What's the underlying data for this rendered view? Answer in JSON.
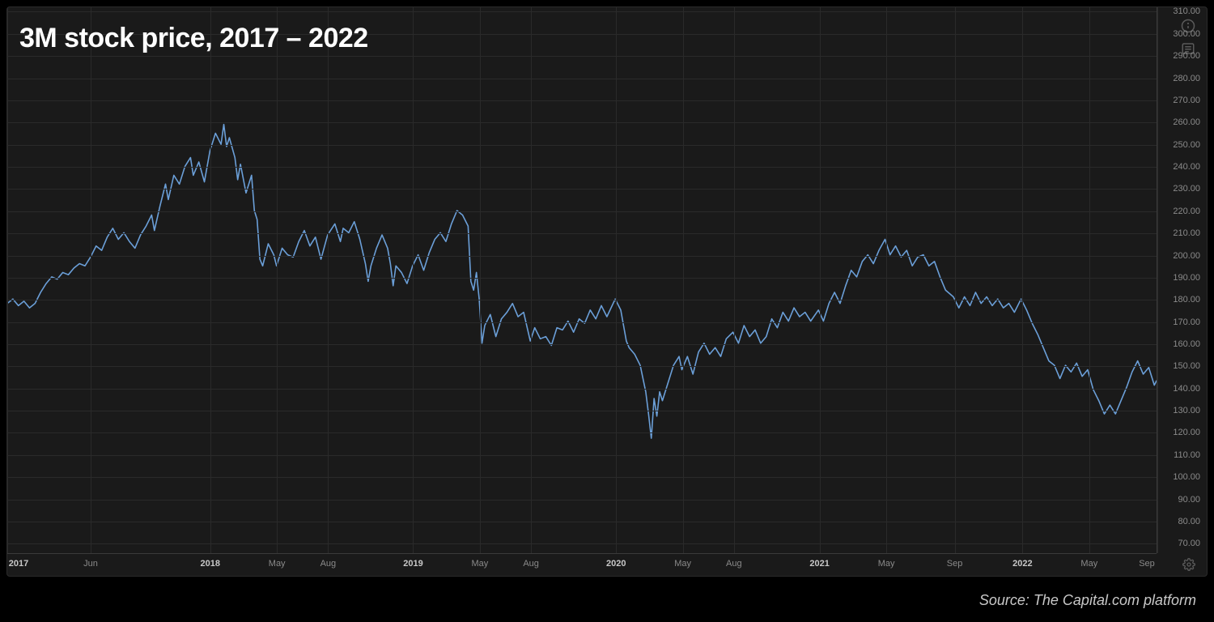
{
  "title": "3M stock price, 2017 – 2022",
  "source": "Source: The Capital.com platform",
  "chart": {
    "type": "line",
    "background_color": "#1a1a1a",
    "grid_color": "#2a2a2a",
    "axis_border_color": "#3a3a3a",
    "axis_label_color": "#8a8a8a",
    "axis_label_bold_color": "#c8c8c8",
    "axis_fontsize": 11,
    "title_color": "#ffffff",
    "title_fontsize": 34,
    "line_color": "#6b9fd8",
    "line_width": 1.6,
    "y_axis": {
      "min": 65,
      "max": 312,
      "ticks": [
        70,
        80,
        90,
        100,
        110,
        120,
        130,
        140,
        150,
        160,
        170,
        180,
        190,
        200,
        210,
        220,
        230,
        240,
        250,
        260,
        270,
        280,
        290,
        300,
        310
      ],
      "labels": [
        "70.00",
        "80.00",
        "90.00",
        "100.00",
        "110.00",
        "120.00",
        "130.00",
        "140.00",
        "150.00",
        "160.00",
        "170.00",
        "180.00",
        "190.00",
        "200.00",
        "210.00",
        "220.00",
        "230.00",
        "240.00",
        "250.00",
        "260.00",
        "270.00",
        "280.00",
        "290.00",
        "300.00",
        "310.00"
      ]
    },
    "x_axis": {
      "min": 0,
      "max": 2070,
      "ticks": [
        {
          "pos": 0,
          "label": "2017",
          "bold": true
        },
        {
          "pos": 150,
          "label": "Jun",
          "bold": false
        },
        {
          "pos": 365,
          "label": "2018",
          "bold": true
        },
        {
          "pos": 485,
          "label": "May",
          "bold": false
        },
        {
          "pos": 577,
          "label": "Aug",
          "bold": false
        },
        {
          "pos": 730,
          "label": "2019",
          "bold": true
        },
        {
          "pos": 850,
          "label": "May",
          "bold": false
        },
        {
          "pos": 942,
          "label": "Aug",
          "bold": false
        },
        {
          "pos": 1095,
          "label": "2020",
          "bold": true
        },
        {
          "pos": 1215,
          "label": "May",
          "bold": false
        },
        {
          "pos": 1307,
          "label": "Aug",
          "bold": false
        },
        {
          "pos": 1461,
          "label": "2021",
          "bold": true
        },
        {
          "pos": 1581,
          "label": "May",
          "bold": false
        },
        {
          "pos": 1704,
          "label": "Sep",
          "bold": false
        },
        {
          "pos": 1826,
          "label": "2022",
          "bold": true
        },
        {
          "pos": 1946,
          "label": "May",
          "bold": false
        },
        {
          "pos": 2069,
          "label": "Sep",
          "bold": false
        }
      ]
    },
    "series": [
      {
        "x": 0,
        "y": 178
      },
      {
        "x": 10,
        "y": 180
      },
      {
        "x": 20,
        "y": 177
      },
      {
        "x": 30,
        "y": 179
      },
      {
        "x": 40,
        "y": 176
      },
      {
        "x": 50,
        "y": 178
      },
      {
        "x": 60,
        "y": 183
      },
      {
        "x": 70,
        "y": 187
      },
      {
        "x": 80,
        "y": 190
      },
      {
        "x": 90,
        "y": 189
      },
      {
        "x": 100,
        "y": 192
      },
      {
        "x": 110,
        "y": 191
      },
      {
        "x": 120,
        "y": 194
      },
      {
        "x": 130,
        "y": 196
      },
      {
        "x": 140,
        "y": 195
      },
      {
        "x": 150,
        "y": 199
      },
      {
        "x": 160,
        "y": 204
      },
      {
        "x": 170,
        "y": 202
      },
      {
        "x": 180,
        "y": 208
      },
      {
        "x": 190,
        "y": 212
      },
      {
        "x": 200,
        "y": 207
      },
      {
        "x": 210,
        "y": 210
      },
      {
        "x": 220,
        "y": 206
      },
      {
        "x": 230,
        "y": 203
      },
      {
        "x": 240,
        "y": 209
      },
      {
        "x": 250,
        "y": 213
      },
      {
        "x": 260,
        "y": 218
      },
      {
        "x": 265,
        "y": 211
      },
      {
        "x": 275,
        "y": 222
      },
      {
        "x": 285,
        "y": 232
      },
      {
        "x": 290,
        "y": 225
      },
      {
        "x": 300,
        "y": 236
      },
      {
        "x": 310,
        "y": 232
      },
      {
        "x": 320,
        "y": 240
      },
      {
        "x": 330,
        "y": 244
      },
      {
        "x": 335,
        "y": 236
      },
      {
        "x": 345,
        "y": 242
      },
      {
        "x": 355,
        "y": 233
      },
      {
        "x": 365,
        "y": 247
      },
      {
        "x": 375,
        "y": 255
      },
      {
        "x": 385,
        "y": 250
      },
      {
        "x": 390,
        "y": 259
      },
      {
        "x": 395,
        "y": 249
      },
      {
        "x": 400,
        "y": 253
      },
      {
        "x": 410,
        "y": 244
      },
      {
        "x": 415,
        "y": 234
      },
      {
        "x": 420,
        "y": 241
      },
      {
        "x": 430,
        "y": 228
      },
      {
        "x": 440,
        "y": 236
      },
      {
        "x": 445,
        "y": 220
      },
      {
        "x": 450,
        "y": 216
      },
      {
        "x": 455,
        "y": 198
      },
      {
        "x": 460,
        "y": 195
      },
      {
        "x": 470,
        "y": 205
      },
      {
        "x": 480,
        "y": 200
      },
      {
        "x": 485,
        "y": 195
      },
      {
        "x": 495,
        "y": 203
      },
      {
        "x": 505,
        "y": 200
      },
      {
        "x": 515,
        "y": 199
      },
      {
        "x": 525,
        "y": 206
      },
      {
        "x": 535,
        "y": 211
      },
      {
        "x": 545,
        "y": 204
      },
      {
        "x": 555,
        "y": 208
      },
      {
        "x": 565,
        "y": 198
      },
      {
        "x": 577,
        "y": 209
      },
      {
        "x": 590,
        "y": 214
      },
      {
        "x": 600,
        "y": 206
      },
      {
        "x": 605,
        "y": 212
      },
      {
        "x": 615,
        "y": 210
      },
      {
        "x": 625,
        "y": 215
      },
      {
        "x": 635,
        "y": 207
      },
      {
        "x": 645,
        "y": 196
      },
      {
        "x": 650,
        "y": 188
      },
      {
        "x": 655,
        "y": 195
      },
      {
        "x": 665,
        "y": 203
      },
      {
        "x": 675,
        "y": 209
      },
      {
        "x": 685,
        "y": 203
      },
      {
        "x": 690,
        "y": 196
      },
      {
        "x": 695,
        "y": 186
      },
      {
        "x": 700,
        "y": 195
      },
      {
        "x": 710,
        "y": 192
      },
      {
        "x": 720,
        "y": 187
      },
      {
        "x": 730,
        "y": 195
      },
      {
        "x": 740,
        "y": 200
      },
      {
        "x": 750,
        "y": 193
      },
      {
        "x": 760,
        "y": 201
      },
      {
        "x": 770,
        "y": 207
      },
      {
        "x": 780,
        "y": 210
      },
      {
        "x": 790,
        "y": 206
      },
      {
        "x": 800,
        "y": 214
      },
      {
        "x": 810,
        "y": 220
      },
      {
        "x": 820,
        "y": 218
      },
      {
        "x": 830,
        "y": 213
      },
      {
        "x": 835,
        "y": 188
      },
      {
        "x": 840,
        "y": 184
      },
      {
        "x": 845,
        "y": 192
      },
      {
        "x": 850,
        "y": 180
      },
      {
        "x": 855,
        "y": 160
      },
      {
        "x": 860,
        "y": 168
      },
      {
        "x": 870,
        "y": 173
      },
      {
        "x": 880,
        "y": 163
      },
      {
        "x": 890,
        "y": 171
      },
      {
        "x": 900,
        "y": 174
      },
      {
        "x": 910,
        "y": 178
      },
      {
        "x": 920,
        "y": 172
      },
      {
        "x": 930,
        "y": 174
      },
      {
        "x": 942,
        "y": 161
      },
      {
        "x": 950,
        "y": 167
      },
      {
        "x": 960,
        "y": 162
      },
      {
        "x": 970,
        "y": 163
      },
      {
        "x": 980,
        "y": 159
      },
      {
        "x": 990,
        "y": 167
      },
      {
        "x": 1000,
        "y": 166
      },
      {
        "x": 1010,
        "y": 170
      },
      {
        "x": 1020,
        "y": 165
      },
      {
        "x": 1030,
        "y": 171
      },
      {
        "x": 1040,
        "y": 169
      },
      {
        "x": 1050,
        "y": 175
      },
      {
        "x": 1060,
        "y": 171
      },
      {
        "x": 1070,
        "y": 177
      },
      {
        "x": 1080,
        "y": 172
      },
      {
        "x": 1095,
        "y": 180
      },
      {
        "x": 1105,
        "y": 175
      },
      {
        "x": 1115,
        "y": 161
      },
      {
        "x": 1120,
        "y": 158
      },
      {
        "x": 1130,
        "y": 155
      },
      {
        "x": 1140,
        "y": 150
      },
      {
        "x": 1150,
        "y": 138
      },
      {
        "x": 1155,
        "y": 128
      },
      {
        "x": 1160,
        "y": 117
      },
      {
        "x": 1165,
        "y": 135
      },
      {
        "x": 1170,
        "y": 127
      },
      {
        "x": 1175,
        "y": 138
      },
      {
        "x": 1180,
        "y": 134
      },
      {
        "x": 1190,
        "y": 142
      },
      {
        "x": 1200,
        "y": 150
      },
      {
        "x": 1210,
        "y": 154
      },
      {
        "x": 1215,
        "y": 148
      },
      {
        "x": 1225,
        "y": 154
      },
      {
        "x": 1235,
        "y": 146
      },
      {
        "x": 1245,
        "y": 156
      },
      {
        "x": 1255,
        "y": 160
      },
      {
        "x": 1265,
        "y": 155
      },
      {
        "x": 1275,
        "y": 158
      },
      {
        "x": 1285,
        "y": 154
      },
      {
        "x": 1295,
        "y": 162
      },
      {
        "x": 1307,
        "y": 165
      },
      {
        "x": 1317,
        "y": 160
      },
      {
        "x": 1327,
        "y": 168
      },
      {
        "x": 1337,
        "y": 163
      },
      {
        "x": 1347,
        "y": 166
      },
      {
        "x": 1357,
        "y": 160
      },
      {
        "x": 1367,
        "y": 163
      },
      {
        "x": 1377,
        "y": 171
      },
      {
        "x": 1387,
        "y": 167
      },
      {
        "x": 1397,
        "y": 174
      },
      {
        "x": 1407,
        "y": 170
      },
      {
        "x": 1417,
        "y": 176
      },
      {
        "x": 1427,
        "y": 172
      },
      {
        "x": 1437,
        "y": 174
      },
      {
        "x": 1447,
        "y": 170
      },
      {
        "x": 1461,
        "y": 175
      },
      {
        "x": 1470,
        "y": 170
      },
      {
        "x": 1480,
        "y": 178
      },
      {
        "x": 1490,
        "y": 183
      },
      {
        "x": 1500,
        "y": 178
      },
      {
        "x": 1510,
        "y": 186
      },
      {
        "x": 1520,
        "y": 193
      },
      {
        "x": 1530,
        "y": 190
      },
      {
        "x": 1540,
        "y": 197
      },
      {
        "x": 1550,
        "y": 200
      },
      {
        "x": 1560,
        "y": 196
      },
      {
        "x": 1570,
        "y": 202
      },
      {
        "x": 1581,
        "y": 207
      },
      {
        "x": 1590,
        "y": 200
      },
      {
        "x": 1600,
        "y": 204
      },
      {
        "x": 1610,
        "y": 199
      },
      {
        "x": 1620,
        "y": 202
      },
      {
        "x": 1630,
        "y": 195
      },
      {
        "x": 1640,
        "y": 199
      },
      {
        "x": 1650,
        "y": 200
      },
      {
        "x": 1660,
        "y": 195
      },
      {
        "x": 1670,
        "y": 197
      },
      {
        "x": 1680,
        "y": 190
      },
      {
        "x": 1690,
        "y": 184
      },
      {
        "x": 1704,
        "y": 181
      },
      {
        "x": 1714,
        "y": 176
      },
      {
        "x": 1724,
        "y": 181
      },
      {
        "x": 1734,
        "y": 177
      },
      {
        "x": 1744,
        "y": 183
      },
      {
        "x": 1754,
        "y": 178
      },
      {
        "x": 1764,
        "y": 181
      },
      {
        "x": 1774,
        "y": 177
      },
      {
        "x": 1784,
        "y": 180
      },
      {
        "x": 1794,
        "y": 176
      },
      {
        "x": 1804,
        "y": 178
      },
      {
        "x": 1814,
        "y": 174
      },
      {
        "x": 1826,
        "y": 180
      },
      {
        "x": 1836,
        "y": 175
      },
      {
        "x": 1846,
        "y": 169
      },
      {
        "x": 1856,
        "y": 164
      },
      {
        "x": 1866,
        "y": 158
      },
      {
        "x": 1876,
        "y": 152
      },
      {
        "x": 1886,
        "y": 150
      },
      {
        "x": 1896,
        "y": 144
      },
      {
        "x": 1906,
        "y": 150
      },
      {
        "x": 1916,
        "y": 147
      },
      {
        "x": 1926,
        "y": 151
      },
      {
        "x": 1936,
        "y": 145
      },
      {
        "x": 1946,
        "y": 148
      },
      {
        "x": 1956,
        "y": 139
      },
      {
        "x": 1966,
        "y": 134
      },
      {
        "x": 1976,
        "y": 128
      },
      {
        "x": 1986,
        "y": 132
      },
      {
        "x": 1996,
        "y": 128
      },
      {
        "x": 2006,
        "y": 134
      },
      {
        "x": 2016,
        "y": 140
      },
      {
        "x": 2026,
        "y": 147
      },
      {
        "x": 2036,
        "y": 152
      },
      {
        "x": 2046,
        "y": 146
      },
      {
        "x": 2056,
        "y": 149
      },
      {
        "x": 2066,
        "y": 141
      },
      {
        "x": 2070,
        "y": 143
      }
    ]
  }
}
